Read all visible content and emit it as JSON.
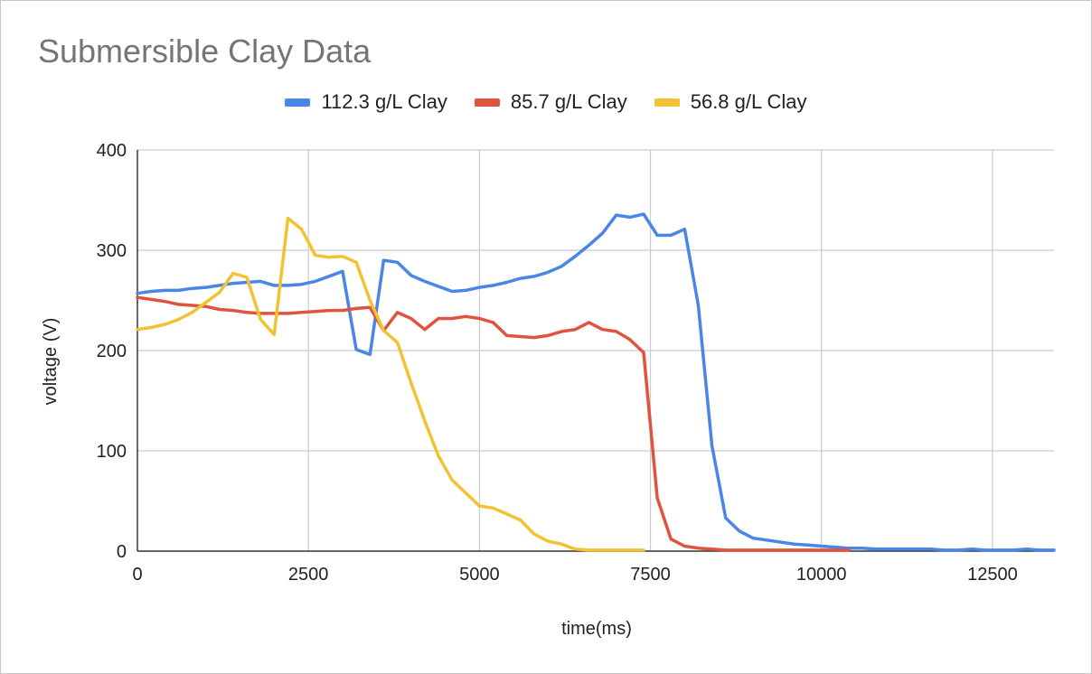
{
  "chart_data": {
    "type": "line",
    "title": "Submersible Clay Data",
    "xlabel": "time(ms)",
    "ylabel": "voltage (V)",
    "xlim": [
      0,
      13400
    ],
    "ylim": [
      0,
      400
    ],
    "x_ticks": [
      0,
      2500,
      5000,
      7500,
      10000,
      12500
    ],
    "y_ticks": [
      0,
      100,
      200,
      300,
      400
    ],
    "grid": true,
    "legend_position": "top",
    "series": [
      {
        "name": "112.3 g/L Clay",
        "color": "#4a86e8",
        "points": [
          [
            0,
            257
          ],
          [
            200,
            259
          ],
          [
            400,
            260
          ],
          [
            600,
            260
          ],
          [
            800,
            262
          ],
          [
            1000,
            263
          ],
          [
            1200,
            265
          ],
          [
            1400,
            267
          ],
          [
            1600,
            268
          ],
          [
            1800,
            269
          ],
          [
            2000,
            265
          ],
          [
            2200,
            265
          ],
          [
            2400,
            266
          ],
          [
            2600,
            269
          ],
          [
            2800,
            274
          ],
          [
            3000,
            279
          ],
          [
            3200,
            201
          ],
          [
            3400,
            196
          ],
          [
            3600,
            290
          ],
          [
            3800,
            288
          ],
          [
            4000,
            275
          ],
          [
            4200,
            269
          ],
          [
            4400,
            264
          ],
          [
            4600,
            259
          ],
          [
            4800,
            260
          ],
          [
            5000,
            263
          ],
          [
            5200,
            265
          ],
          [
            5400,
            268
          ],
          [
            5600,
            272
          ],
          [
            5800,
            274
          ],
          [
            6000,
            278
          ],
          [
            6200,
            284
          ],
          [
            6400,
            294
          ],
          [
            6600,
            305
          ],
          [
            6800,
            317
          ],
          [
            7000,
            335
          ],
          [
            7200,
            333
          ],
          [
            7400,
            336
          ],
          [
            7600,
            315
          ],
          [
            7800,
            315
          ],
          [
            8000,
            321
          ],
          [
            8200,
            245
          ],
          [
            8400,
            105
          ],
          [
            8600,
            33
          ],
          [
            8800,
            20
          ],
          [
            9000,
            13
          ],
          [
            9200,
            11
          ],
          [
            9400,
            9
          ],
          [
            9600,
            7
          ],
          [
            9800,
            6
          ],
          [
            10000,
            5
          ],
          [
            10200,
            4
          ],
          [
            10400,
            3
          ],
          [
            10600,
            3
          ],
          [
            10800,
            2
          ],
          [
            11000,
            2
          ],
          [
            11200,
            2
          ],
          [
            11400,
            2
          ],
          [
            11600,
            2
          ],
          [
            11800,
            1
          ],
          [
            12000,
            1
          ],
          [
            12200,
            2
          ],
          [
            12400,
            1
          ],
          [
            12600,
            1
          ],
          [
            12800,
            1
          ],
          [
            13000,
            2
          ],
          [
            13200,
            1
          ],
          [
            13400,
            1
          ]
        ]
      },
      {
        "name": "85.7 g/L Clay",
        "color": "#e0533e",
        "points": [
          [
            0,
            253
          ],
          [
            200,
            251
          ],
          [
            400,
            249
          ],
          [
            600,
            246
          ],
          [
            800,
            245
          ],
          [
            1000,
            244
          ],
          [
            1200,
            241
          ],
          [
            1400,
            240
          ],
          [
            1600,
            238
          ],
          [
            1800,
            237
          ],
          [
            2000,
            237
          ],
          [
            2200,
            237
          ],
          [
            2400,
            238
          ],
          [
            2600,
            239
          ],
          [
            2800,
            240
          ],
          [
            3000,
            240
          ],
          [
            3200,
            242
          ],
          [
            3400,
            243
          ],
          [
            3600,
            220
          ],
          [
            3800,
            238
          ],
          [
            4000,
            232
          ],
          [
            4200,
            221
          ],
          [
            4400,
            232
          ],
          [
            4600,
            232
          ],
          [
            4800,
            234
          ],
          [
            5000,
            232
          ],
          [
            5200,
            228
          ],
          [
            5400,
            215
          ],
          [
            5600,
            214
          ],
          [
            5800,
            213
          ],
          [
            6000,
            215
          ],
          [
            6200,
            219
          ],
          [
            6400,
            221
          ],
          [
            6600,
            228
          ],
          [
            6800,
            221
          ],
          [
            7000,
            219
          ],
          [
            7200,
            211
          ],
          [
            7400,
            198
          ],
          [
            7600,
            53
          ],
          [
            7800,
            12
          ],
          [
            8000,
            5
          ],
          [
            8200,
            3
          ],
          [
            8400,
            2
          ],
          [
            8600,
            1
          ],
          [
            8800,
            1
          ],
          [
            9000,
            1
          ],
          [
            9200,
            1
          ],
          [
            9400,
            1
          ],
          [
            9600,
            1
          ],
          [
            9800,
            1
          ],
          [
            10000,
            1
          ],
          [
            10200,
            1
          ],
          [
            10400,
            1
          ]
        ]
      },
      {
        "name": "56.8 g/L Clay",
        "color": "#f1c232",
        "points": [
          [
            0,
            221
          ],
          [
            200,
            223
          ],
          [
            400,
            226
          ],
          [
            600,
            231
          ],
          [
            800,
            238
          ],
          [
            1000,
            248
          ],
          [
            1200,
            258
          ],
          [
            1400,
            277
          ],
          [
            1600,
            273
          ],
          [
            1800,
            231
          ],
          [
            2000,
            216
          ],
          [
            2200,
            332
          ],
          [
            2400,
            321
          ],
          [
            2600,
            295
          ],
          [
            2800,
            293
          ],
          [
            3000,
            294
          ],
          [
            3200,
            288
          ],
          [
            3400,
            250
          ],
          [
            3600,
            220
          ],
          [
            3800,
            208
          ],
          [
            4000,
            168
          ],
          [
            4200,
            130
          ],
          [
            4400,
            95
          ],
          [
            4600,
            71
          ],
          [
            4800,
            58
          ],
          [
            5000,
            45
          ],
          [
            5200,
            43
          ],
          [
            5400,
            37
          ],
          [
            5600,
            31
          ],
          [
            5800,
            17
          ],
          [
            6000,
            10
          ],
          [
            6200,
            7
          ],
          [
            6400,
            2
          ],
          [
            6600,
            1
          ],
          [
            6800,
            1
          ],
          [
            7000,
            1
          ],
          [
            7200,
            1
          ],
          [
            7400,
            1
          ]
        ]
      }
    ]
  }
}
